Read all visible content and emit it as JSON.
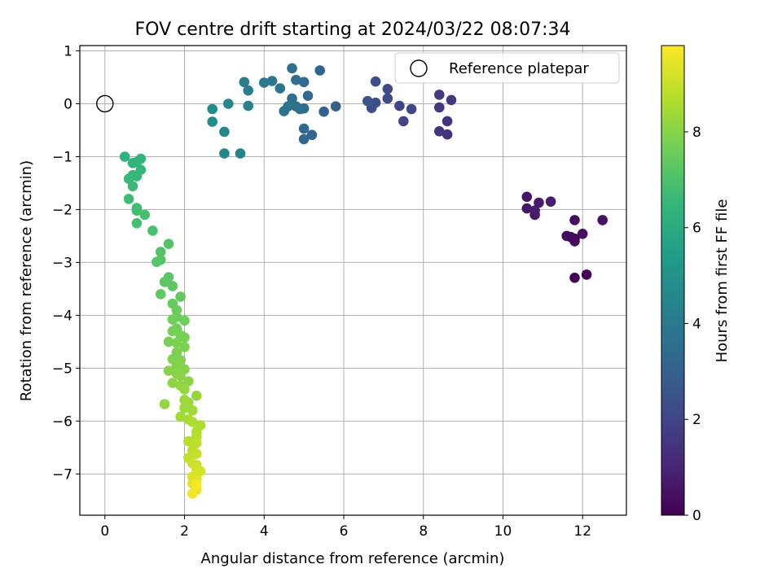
{
  "chart_data": {
    "type": "scatter",
    "title": "FOV centre drift starting at 2024/03/22 08:07:34",
    "xlabel": "Angular distance from reference (arcmin)",
    "ylabel": "Rotation from reference (arcmin)",
    "xlim": [
      -0.63,
      13.1
    ],
    "ylim": [
      -7.78,
      1.1
    ],
    "xticks": [
      0,
      2,
      4,
      6,
      8,
      10,
      12
    ],
    "yticks": [
      1,
      0,
      -1,
      -2,
      -3,
      -4,
      -5,
      -6,
      -7
    ],
    "grid": true,
    "legend": {
      "location": "top-right",
      "entries": [
        "Reference platepar"
      ]
    },
    "reference_point": {
      "x": 0,
      "y": 0,
      "label": "Reference platepar"
    },
    "colorbar": {
      "label": "Hours from first FF file",
      "colormap": "viridis",
      "range": [
        0,
        9.8
      ],
      "ticks": [
        0,
        2,
        4,
        6,
        8
      ]
    },
    "series": [
      {
        "columns": [
          "x",
          "y",
          "hours"
        ],
        "points": [
          [
            11.8,
            -3.29,
            0.05
          ],
          [
            12.1,
            -3.23,
            0.1
          ],
          [
            11.8,
            -2.55,
            0.15
          ],
          [
            11.6,
            -2.5,
            0.2
          ],
          [
            11.7,
            -2.52,
            0.25
          ],
          [
            11.8,
            -2.6,
            0.3
          ],
          [
            12.0,
            -2.46,
            0.35
          ],
          [
            11.8,
            -2.2,
            0.4
          ],
          [
            12.5,
            -2.2,
            0.45
          ],
          [
            10.6,
            -1.76,
            0.55
          ],
          [
            10.6,
            -1.98,
            0.6
          ],
          [
            10.8,
            -2.1,
            0.65
          ],
          [
            10.9,
            -1.87,
            0.7
          ],
          [
            11.2,
            -1.85,
            0.75
          ],
          [
            10.8,
            -2.02,
            0.8
          ],
          [
            8.6,
            -0.58,
            1.4
          ],
          [
            8.6,
            -0.33,
            1.45
          ],
          [
            8.4,
            -0.52,
            1.5
          ],
          [
            8.4,
            -0.07,
            1.55
          ],
          [
            8.7,
            0.07,
            1.6
          ],
          [
            8.4,
            0.17,
            1.65
          ],
          [
            7.5,
            -0.33,
            2.0
          ],
          [
            7.4,
            -0.04,
            2.05
          ],
          [
            7.7,
            -0.1,
            2.1
          ],
          [
            7.1,
            0.1,
            2.2
          ],
          [
            7.1,
            0.28,
            2.25
          ],
          [
            6.8,
            0.42,
            2.3
          ],
          [
            6.7,
            -0.08,
            2.35
          ],
          [
            6.8,
            0.02,
            2.4
          ],
          [
            6.6,
            0.05,
            2.45
          ],
          [
            5.5,
            -0.15,
            3.0
          ],
          [
            5.8,
            -0.05,
            3.05
          ],
          [
            5.4,
            0.63,
            3.15
          ],
          [
            5.2,
            -0.59,
            3.2
          ],
          [
            5.0,
            -0.67,
            3.25
          ],
          [
            5.0,
            -0.47,
            3.3
          ],
          [
            5.0,
            0.41,
            3.35
          ],
          [
            5.1,
            0.15,
            3.4
          ],
          [
            5.0,
            -0.09,
            3.45
          ],
          [
            4.8,
            0.45,
            3.5
          ],
          [
            4.7,
            0.67,
            3.55
          ],
          [
            4.9,
            -0.1,
            3.6
          ],
          [
            4.8,
            -0.05,
            3.6
          ],
          [
            4.7,
            0.1,
            3.65
          ],
          [
            4.7,
            0.0,
            3.7
          ],
          [
            4.6,
            -0.05,
            3.7
          ],
          [
            4.5,
            -0.14,
            3.75
          ],
          [
            4.4,
            0.29,
            3.8
          ],
          [
            4.2,
            0.43,
            3.85
          ],
          [
            4.0,
            0.4,
            3.9
          ],
          [
            3.6,
            0.25,
            4.2
          ],
          [
            3.5,
            0.41,
            4.25
          ],
          [
            3.6,
            -0.04,
            4.3
          ],
          [
            3.4,
            -0.94,
            4.4
          ],
          [
            3.0,
            -0.94,
            4.5
          ],
          [
            3.0,
            -0.53,
            4.55
          ],
          [
            3.1,
            0.0,
            4.6
          ],
          [
            2.7,
            -0.34,
            4.7
          ],
          [
            2.7,
            -0.1,
            4.75
          ],
          [
            0.5,
            -1.0,
            6.3
          ],
          [
            0.7,
            -1.12,
            6.35
          ],
          [
            0.9,
            -1.04,
            6.4
          ],
          [
            0.8,
            -1.1,
            6.45
          ],
          [
            0.9,
            -1.25,
            6.5
          ],
          [
            0.8,
            -1.37,
            6.5
          ],
          [
            0.7,
            -1.35,
            6.55
          ],
          [
            0.6,
            -1.42,
            6.6
          ],
          [
            0.7,
            -1.56,
            6.65
          ],
          [
            0.6,
            -1.8,
            6.7
          ],
          [
            0.8,
            -1.97,
            6.75
          ],
          [
            0.8,
            -2.02,
            6.8
          ],
          [
            1.0,
            -2.1,
            6.85
          ],
          [
            0.8,
            -2.26,
            6.9
          ],
          [
            1.2,
            -2.4,
            6.95
          ],
          [
            1.6,
            -2.65,
            7.1
          ],
          [
            1.4,
            -2.8,
            7.15
          ],
          [
            1.4,
            -2.95,
            7.15
          ],
          [
            1.3,
            -2.99,
            7.2
          ],
          [
            1.6,
            -3.28,
            7.25
          ],
          [
            1.5,
            -3.37,
            7.3
          ],
          [
            1.7,
            -3.45,
            7.3
          ],
          [
            1.4,
            -3.6,
            7.35
          ],
          [
            1.9,
            -3.65,
            7.4
          ],
          [
            1.7,
            -3.78,
            7.45
          ],
          [
            1.8,
            -3.9,
            7.5
          ],
          [
            1.8,
            -4.03,
            7.55
          ],
          [
            1.7,
            -4.08,
            7.6
          ],
          [
            2.0,
            -4.1,
            7.6
          ],
          [
            1.8,
            -4.25,
            7.65
          ],
          [
            1.7,
            -4.3,
            7.7
          ],
          [
            1.9,
            -4.38,
            7.7
          ],
          [
            2.0,
            -4.42,
            7.75
          ],
          [
            1.6,
            -4.5,
            7.75
          ],
          [
            1.8,
            -4.52,
            7.8
          ],
          [
            2.0,
            -4.6,
            7.8
          ],
          [
            1.8,
            -4.7,
            7.85
          ],
          [
            1.7,
            -4.83,
            7.85
          ],
          [
            1.9,
            -4.85,
            7.9
          ],
          [
            1.8,
            -4.95,
            7.9
          ],
          [
            1.9,
            -5.0,
            7.95
          ],
          [
            2.0,
            -5.02,
            7.95
          ],
          [
            1.6,
            -5.05,
            8.0
          ],
          [
            1.8,
            -5.1,
            8.0
          ],
          [
            1.9,
            -5.15,
            8.05
          ],
          [
            1.7,
            -5.28,
            8.1
          ],
          [
            2.1,
            -5.25,
            8.1
          ],
          [
            1.9,
            -5.33,
            8.15
          ],
          [
            2.0,
            -5.4,
            8.2
          ],
          [
            1.5,
            -5.68,
            8.2
          ],
          [
            2.3,
            -5.52,
            8.25
          ],
          [
            2.0,
            -5.6,
            8.3
          ],
          [
            2.1,
            -5.65,
            8.3
          ],
          [
            2.0,
            -5.75,
            8.35
          ],
          [
            2.2,
            -5.8,
            8.4
          ],
          [
            1.9,
            -5.92,
            8.45
          ],
          [
            2.1,
            -5.97,
            8.5
          ],
          [
            2.2,
            -6.02,
            8.55
          ],
          [
            2.4,
            -6.08,
            8.6
          ],
          [
            2.3,
            -6.2,
            8.65
          ],
          [
            2.3,
            -6.3,
            8.7
          ],
          [
            2.1,
            -6.38,
            8.75
          ],
          [
            2.3,
            -6.42,
            8.8
          ],
          [
            2.2,
            -6.55,
            8.85
          ],
          [
            2.1,
            -6.7,
            8.9
          ],
          [
            2.3,
            -6.62,
            8.95
          ],
          [
            2.2,
            -6.8,
            9.0
          ],
          [
            2.3,
            -6.83,
            9.05
          ],
          [
            2.3,
            -6.9,
            9.1
          ],
          [
            2.4,
            -6.95,
            9.15
          ],
          [
            2.3,
            -7.0,
            9.2
          ],
          [
            2.2,
            -7.05,
            9.25
          ],
          [
            2.3,
            -7.1,
            9.3
          ],
          [
            2.2,
            -7.18,
            9.4
          ],
          [
            2.3,
            -7.3,
            9.5
          ],
          [
            2.2,
            -7.37,
            9.6
          ],
          [
            2.3,
            -7.2,
            9.7
          ]
        ]
      }
    ]
  }
}
